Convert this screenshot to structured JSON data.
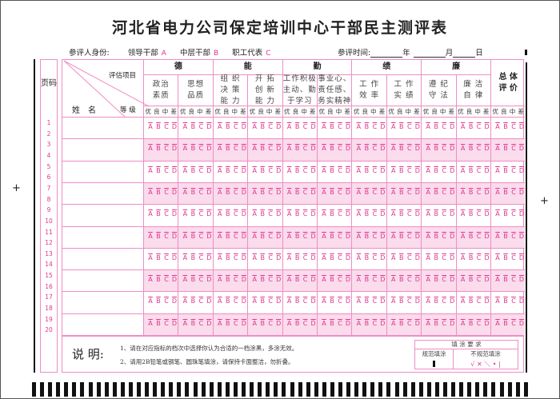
{
  "title": "河北省电力公司保定培训中心干部民主测评表",
  "identity": {
    "label": "参评人身份:",
    "options": [
      {
        "label": "领导干部",
        "code": "A"
      },
      {
        "label": "中层干部",
        "code": "B"
      },
      {
        "label": "职工代表",
        "code": "C"
      }
    ]
  },
  "date": {
    "label": "参评时间:",
    "year": "年",
    "month": "月",
    "day": "日"
  },
  "page_label": "页码",
  "header": {
    "items_label": "评估项目",
    "name_label": "姓　名",
    "grade_label": "等 级"
  },
  "categories": [
    {
      "label": "德",
      "subs": [
        "政治\n素质",
        "思想\n品质"
      ]
    },
    {
      "label": "能",
      "subs": [
        "组 织\n决 策\n能 力",
        "开 拓\n创 新\n能 力"
      ]
    },
    {
      "label": "勤",
      "subs": [
        "工作积极\n主动、勤\n于学习",
        "事业心、\n责任感、\n务实精神"
      ]
    },
    {
      "label": "绩",
      "subs": [
        "工 作\n效 率",
        "工 作\n实 绩"
      ]
    },
    {
      "label": "廉",
      "subs": [
        "遵 纪\n守 法",
        "廉 洁\n自 律"
      ]
    },
    {
      "label": "总 体\n评 价",
      "subs": []
    }
  ],
  "grades": [
    "优",
    "良",
    "中",
    "差"
  ],
  "choices": [
    "A",
    "B",
    "C",
    "D"
  ],
  "page_numbers": [
    "1",
    "2",
    "3",
    "4",
    "5",
    "6",
    "7",
    "8",
    "9",
    "10",
    "11",
    "12",
    "13",
    "14",
    "15",
    "16",
    "17",
    "18",
    "19",
    "20"
  ],
  "notes": {
    "heading": "说 明:",
    "items": [
      "1、请在对应指标的档次中选择你认为合适的一档涂黑，多涂无效。",
      "2、请用2B铅笔或钢笔、圆珠笔填涂，请保持卡面整洁，勿折叠。"
    ]
  },
  "fill_req": {
    "title": "填 涂 要 求",
    "correct": "规范填涂",
    "incorrect": "不规范填涂",
    "incorrect_marks": "√ ✕ ＼ • |"
  },
  "colors": {
    "accent": "#e0338e",
    "line": "#f08cc4",
    "shade": "#fadcec"
  }
}
